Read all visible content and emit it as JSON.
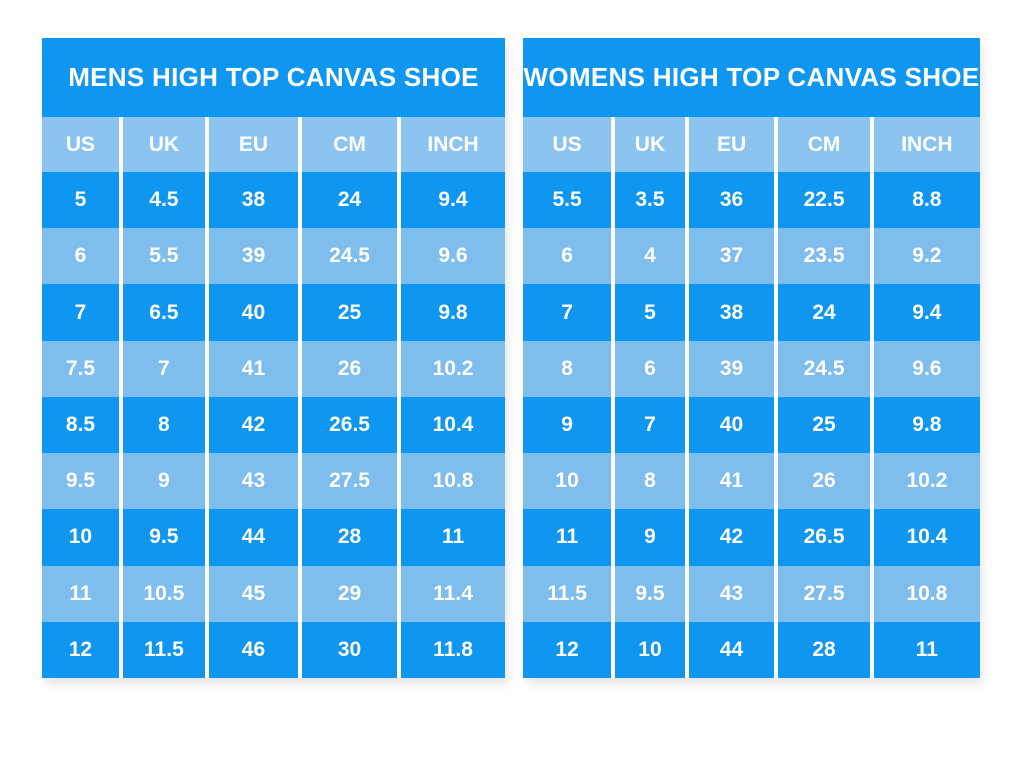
{
  "chart_data": [
    {
      "type": "table",
      "title": "MENS HIGH TOP CANVAS SHOE",
      "columns": [
        "US",
        "UK",
        "EU",
        "CM",
        "INCH"
      ],
      "rows": [
        [
          "5",
          "4.5",
          "38",
          "24",
          "9.4"
        ],
        [
          "6",
          "5.5",
          "39",
          "24.5",
          "9.6"
        ],
        [
          "7",
          "6.5",
          "40",
          "25",
          "9.8"
        ],
        [
          "7.5",
          "7",
          "41",
          "26",
          "10.2"
        ],
        [
          "8.5",
          "8",
          "42",
          "26.5",
          "10.4"
        ],
        [
          "9.5",
          "9",
          "43",
          "27.5",
          "10.8"
        ],
        [
          "10",
          "9.5",
          "44",
          "28",
          "11"
        ],
        [
          "11",
          "10.5",
          "45",
          "29",
          "11.4"
        ],
        [
          "12",
          "11.5",
          "46",
          "30",
          "11.8"
        ]
      ],
      "col_widths_pct": [
        16.6,
        18.6,
        20.1,
        21.4,
        23.3
      ],
      "legend_position": "none",
      "grid": "white column dividers, alternating row shading"
    },
    {
      "type": "table",
      "title": "WOMENS HIGH TOP CANVAS SHOE",
      "columns": [
        "US",
        "UK",
        "EU",
        "CM",
        "INCH"
      ],
      "rows": [
        [
          "5.5",
          "3.5",
          "36",
          "22.5",
          "8.8"
        ],
        [
          "6",
          "4",
          "37",
          "23.5",
          "9.2"
        ],
        [
          "7",
          "5",
          "38",
          "24",
          "9.4"
        ],
        [
          "8",
          "6",
          "39",
          "24.5",
          "9.6"
        ],
        [
          "9",
          "7",
          "40",
          "25",
          "9.8"
        ],
        [
          "10",
          "8",
          "41",
          "26",
          "10.2"
        ],
        [
          "11",
          "9",
          "42",
          "26.5",
          "10.4"
        ],
        [
          "11.5",
          "9.5",
          "43",
          "27.5",
          "10.8"
        ],
        [
          "12",
          "10",
          "44",
          "28",
          "11"
        ]
      ],
      "col_widths_pct": [
        19.3,
        16.1,
        19.6,
        20.9,
        24.1
      ],
      "legend_position": "none",
      "grid": "white column dividers, alternating row shading"
    }
  ],
  "colors": {
    "row_dark": "#0E96F1",
    "row_light": "#7FBDEC",
    "header_bg": "#8CC4F0",
    "text": "#FFFFFF",
    "divider": "#FFFFFF",
    "background": "#FFFFFF"
  }
}
